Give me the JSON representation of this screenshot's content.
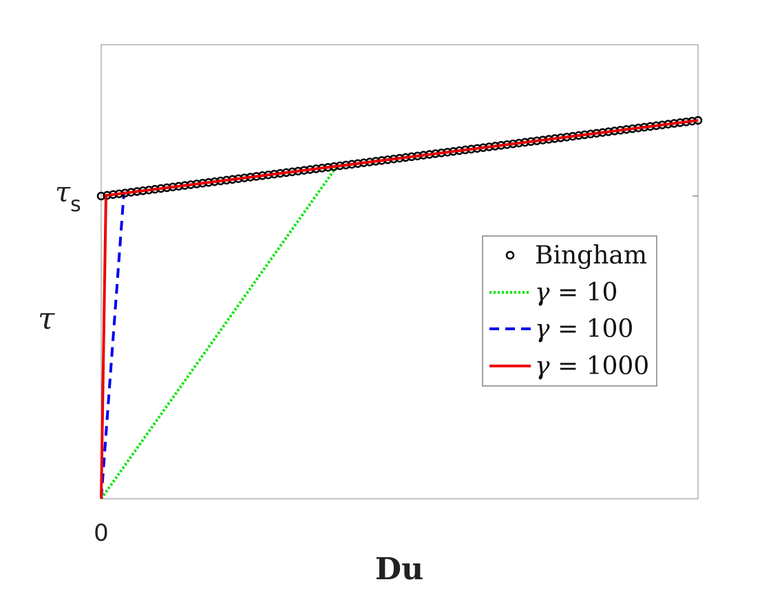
{
  "chart_data": {
    "type": "line",
    "xlabel": "Du",
    "ylabel": "τ",
    "xlim": [
      0,
      100
    ],
    "ylim": [
      0,
      1.5
    ],
    "x_ticks": [
      {
        "value": 0,
        "label": "0"
      }
    ],
    "y_ticks": [
      {
        "value": 1,
        "label": "τ",
        "sub": "s"
      }
    ],
    "grid": false,
    "legend_position": "right",
    "series": [
      {
        "name": "Bingham",
        "style": "markers",
        "marker": "circle",
        "color": "#000000",
        "x_start": 0,
        "x_end": 100,
        "count": 101,
        "y_intercept": 1.0,
        "slope": 0.0025
      },
      {
        "name_parts": [
          "γ",
          " = 10"
        ],
        "style": "dotted",
        "color": "#00e600",
        "x": [
          0,
          39.5,
          100
        ],
        "y": [
          0,
          1.09875,
          1.25
        ]
      },
      {
        "name_parts": [
          "γ",
          " = 100"
        ],
        "style": "dashed",
        "color": "#0000ee",
        "x": [
          0,
          3.8,
          100
        ],
        "y": [
          0,
          1.0095,
          1.25
        ]
      },
      {
        "name_parts": [
          "γ",
          " = 1000"
        ],
        "style": "solid",
        "color": "#ee0000",
        "x": [
          0,
          0.8,
          100
        ],
        "y": [
          0,
          1.002,
          1.25
        ]
      }
    ]
  }
}
